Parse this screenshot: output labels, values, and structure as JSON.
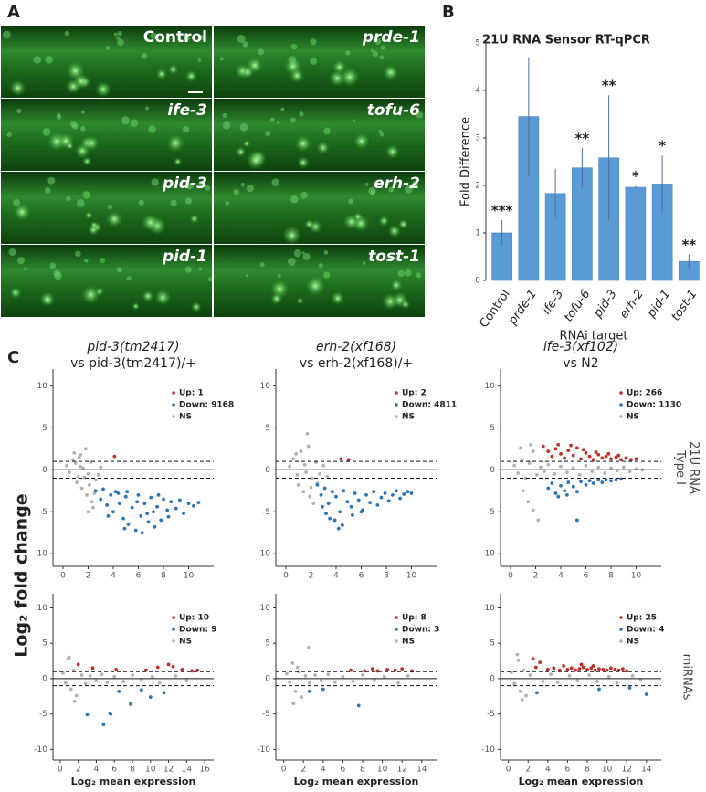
{
  "panel_labels": [
    "A",
    "B",
    "C"
  ],
  "panel_a": {
    "labels": [
      "Control",
      "prde-1",
      "ife-3",
      "tofu-6",
      "pid-3",
      "erh-2",
      "pid-1",
      "tost-1"
    ]
  },
  "panel_c": {
    "ylabel": "Log₂ fold change"
  },
  "chart_data": [
    {
      "type": "bar",
      "title": "21U RNA Sensor RT-qPCR",
      "xlabel": "RNAi target",
      "ylabel": "Fold Difference",
      "categories": [
        "Control",
        "prde-1",
        "ife-3",
        "tofu-6",
        "pid-3",
        "erh-2",
        "pid-1",
        "tost-1"
      ],
      "values": [
        1.0,
        3.45,
        1.83,
        2.37,
        2.58,
        1.96,
        2.03,
        0.4
      ],
      "errors": [
        0.27,
        1.25,
        0.52,
        0.42,
        1.32,
        0.03,
        0.6,
        0.15
      ],
      "annotations": [
        "***",
        null,
        null,
        "**",
        "**",
        "*",
        "*",
        "**"
      ],
      "color": "#5b9bd5",
      "ylim": [
        0,
        5
      ],
      "yticks": [
        0,
        1,
        2,
        3,
        4,
        5
      ]
    },
    {
      "type": "scatter",
      "title": [
        "pid-3(tm2417)",
        "vs pid-3(tm2417)/+"
      ],
      "xlim": [
        -0.8,
        12
      ],
      "xticks": [
        0,
        2,
        4,
        6,
        8,
        10
      ],
      "ylim": [
        -11.5,
        12
      ],
      "yticks": [
        -10,
        -5,
        0,
        5,
        10
      ],
      "hlines": [
        {
          "y": 0,
          "style": "solid"
        },
        {
          "y": 1,
          "style": "dashed"
        },
        {
          "y": -1,
          "style": "dashed"
        }
      ],
      "series": [
        {
          "name": "Up: 1",
          "color": "#c0302a",
          "x": [
            4.1
          ],
          "values": [
            1.6
          ]
        },
        {
          "name": "Down: 9168",
          "color": "#2e75b6",
          "x": [
            2.6,
            3.0,
            3.2,
            3.5,
            3.8,
            4.0,
            4.2,
            4.5,
            4.8,
            5.0,
            5.2,
            5.5,
            5.8,
            6.0,
            6.2,
            6.5,
            6.8,
            7.0,
            7.2,
            7.5,
            7.8,
            8.0,
            8.3,
            8.6,
            9.0,
            9.3,
            9.6,
            10.0,
            10.4,
            10.8,
            4.4,
            5.1,
            5.9,
            6.7,
            7.6,
            8.4,
            3.6,
            4.9,
            6.3,
            7.3
          ],
          "values": [
            -2.5,
            -3.5,
            -2.3,
            -4.2,
            -3.0,
            -5.0,
            -2.6,
            -4.0,
            -5.8,
            -3.2,
            -6.5,
            -4.5,
            -7.2,
            -3.0,
            -5.5,
            -4.0,
            -6.2,
            -3.3,
            -5.0,
            -4.4,
            -6.0,
            -3.5,
            -4.8,
            -3.8,
            -4.6,
            -3.6,
            -5.2,
            -4.0,
            -4.3,
            -3.9,
            -2.8,
            -2.6,
            -3.8,
            -5.2,
            -3.0,
            -5.6,
            -5.5,
            -7.0,
            -7.5,
            -6.8
          ]
        },
        {
          "name": "NS",
          "color": "#b3b3b3",
          "x": [
            0.3,
            0.5,
            0.8,
            1.0,
            1.2,
            1.4,
            1.6,
            1.8,
            2.0,
            2.2,
            1.1,
            1.5,
            1.9,
            2.3,
            2.6,
            0.9,
            1.7,
            2.1,
            2.4,
            1.3,
            2.8,
            3.0,
            2.5,
            2.0,
            1.4
          ],
          "values": [
            0.5,
            -0.3,
            1.2,
            0.8,
            -0.8,
            1.8,
            0.2,
            2.5,
            -0.5,
            0.9,
            -1.5,
            -2.2,
            -3.0,
            -3.8,
            -1.2,
            2.0,
            -0.9,
            -1.8,
            -4.5,
            1.5,
            -0.6,
            0.3,
            -2.8,
            -5.0,
            0.4
          ]
        }
      ]
    },
    {
      "type": "scatter",
      "title": [
        "erh-2(xf168)",
        "vs erh-2(xf168)/+"
      ],
      "xlim": [
        -0.8,
        12
      ],
      "xticks": [
        0,
        2,
        4,
        6,
        8,
        10
      ],
      "ylim": [
        -11.5,
        12
      ],
      "yticks": [
        -10,
        -5,
        0,
        5,
        10
      ],
      "hlines": [
        {
          "y": 0,
          "style": "solid"
        },
        {
          "y": 1,
          "style": "dashed"
        },
        {
          "y": -1,
          "style": "dashed"
        }
      ],
      "series": [
        {
          "name": "Up: 2",
          "color": "#c0302a",
          "x": [
            4.4,
            5.0
          ],
          "values": [
            1.3,
            1.2
          ]
        },
        {
          "name": "Down: 4811",
          "color": "#2e75b6",
          "x": [
            2.5,
            2.8,
            3.1,
            3.4,
            3.7,
            4.0,
            4.3,
            4.6,
            4.9,
            5.2,
            5.5,
            5.8,
            6.1,
            6.4,
            6.7,
            7.0,
            7.3,
            7.6,
            7.9,
            8.2,
            8.5,
            8.8,
            9.1,
            9.4,
            9.7,
            10.0,
            3.2,
            3.9,
            4.5,
            5.3,
            6.0,
            2.9,
            3.5,
            4.2
          ],
          "values": [
            -1.8,
            -3.0,
            -2.2,
            -4.0,
            -2.6,
            -3.2,
            -5.0,
            -2.5,
            -3.8,
            -4.4,
            -2.8,
            -3.6,
            -4.8,
            -3.0,
            -3.9,
            -2.6,
            -4.2,
            -3.3,
            -2.8,
            -3.7,
            -3.0,
            -2.5,
            -3.4,
            -2.9,
            -2.6,
            -2.8,
            -5.2,
            -6.0,
            -6.6,
            -5.4,
            -5.0,
            -4.4,
            -5.8,
            -7.0
          ]
        },
        {
          "name": "NS",
          "color": "#b3b3b3",
          "x": [
            0.3,
            0.6,
            0.9,
            1.2,
            1.5,
            1.8,
            2.1,
            2.4,
            1.0,
            1.4,
            1.9,
            2.2,
            2.7,
            3.0,
            0.8,
            1.6,
            2.0,
            2.5,
            1.7,
            3.3
          ],
          "values": [
            0.4,
            1.3,
            -0.6,
            2.2,
            0.6,
            2.8,
            -1.0,
            0.9,
            -1.8,
            -2.6,
            -3.2,
            -4.0,
            -0.5,
            0.5,
            1.9,
            -0.3,
            -2.1,
            -1.6,
            4.3,
            -0.8
          ]
        }
      ]
    },
    {
      "type": "scatter",
      "title": [
        "ife-3(xf102)",
        "vs N2"
      ],
      "xlim": [
        -0.8,
        12
      ],
      "xticks": [
        0,
        2,
        4,
        6,
        8,
        10
      ],
      "ylim": [
        -11.5,
        12
      ],
      "yticks": [
        -10,
        -5,
        0,
        5,
        10
      ],
      "row_label": [
        "21U RNA",
        "Type I"
      ],
      "hlines": [
        {
          "y": 0,
          "style": "solid"
        },
        {
          "y": 1,
          "style": "dashed"
        },
        {
          "y": -1,
          "style": "dashed"
        }
      ],
      "series": [
        {
          "name": "Up: 266",
          "color": "#c0302a",
          "x": [
            2.6,
            3.0,
            3.3,
            3.6,
            4.0,
            4.3,
            4.6,
            5.0,
            5.3,
            5.6,
            6.0,
            6.3,
            6.6,
            7.0,
            7.3,
            7.6,
            8.0,
            8.4,
            8.8,
            9.2,
            9.6,
            10.0,
            3.8,
            4.8,
            5.8,
            6.8,
            7.8,
            8.6
          ],
          "values": [
            2.8,
            2.2,
            1.6,
            2.5,
            1.9,
            1.4,
            2.3,
            1.7,
            2.6,
            1.3,
            2.0,
            1.6,
            1.2,
            1.8,
            1.4,
            1.6,
            1.3,
            1.5,
            1.2,
            1.4,
            1.2,
            1.3,
            3.0,
            2.9,
            2.4,
            2.1,
            1.9,
            1.7
          ]
        },
        {
          "name": "Down: 1130",
          "color": "#2e75b6",
          "x": [
            3.0,
            3.3,
            3.6,
            4.0,
            4.3,
            4.6,
            5.0,
            5.3,
            5.6,
            6.0,
            6.3,
            6.6,
            7.0,
            7.3,
            7.6,
            8.0,
            8.4,
            8.8,
            3.8,
            4.5,
            5.3
          ],
          "values": [
            -2.2,
            -1.6,
            -2.8,
            -1.9,
            -2.5,
            -1.5,
            -2.0,
            -2.6,
            -1.4,
            -1.8,
            -1.3,
            -1.6,
            -1.2,
            -1.5,
            -1.2,
            -1.3,
            -1.2,
            -1.1,
            -3.2,
            -3.0,
            -6.0
          ]
        },
        {
          "name": "NS",
          "color": "#b3b3b3",
          "x": [
            0.3,
            0.6,
            0.9,
            1.2,
            1.5,
            1.8,
            2.1,
            2.4,
            2.7,
            3.0,
            3.5,
            4.0,
            4.5,
            5.0,
            5.5,
            6.0,
            6.5,
            7.0,
            7.5,
            8.0,
            8.5,
            9.0,
            9.5,
            10.0,
            10.5,
            1.0,
            1.4,
            1.8,
            2.2,
            0.8,
            1.6
          ],
          "values": [
            0.5,
            -0.4,
            1.2,
            -1.0,
            0.8,
            2.2,
            -0.6,
            0.3,
            -0.2,
            0.6,
            -0.5,
            0.4,
            -0.3,
            0.2,
            -0.6,
            0.5,
            -0.2,
            0.3,
            -0.4,
            0.2,
            -0.1,
            0.3,
            -0.2,
            0.1,
            0.0,
            -2.5,
            -3.8,
            -4.8,
            -6.0,
            2.6,
            3.0
          ]
        }
      ]
    },
    {
      "type": "scatter",
      "xlabel": "Log₂ mean expression",
      "xlim": [
        -0.8,
        17
      ],
      "xticks": [
        0,
        2,
        4,
        6,
        8,
        10,
        12,
        14,
        16
      ],
      "ylim": [
        -11.5,
        12
      ],
      "yticks": [
        -10,
        -5,
        0,
        5,
        10
      ],
      "hlines": [
        {
          "y": 0,
          "style": "solid"
        },
        {
          "y": 1,
          "style": "dashed"
        },
        {
          "y": -1,
          "style": "dashed"
        }
      ],
      "series": [
        {
          "name": "Up: 10",
          "color": "#c0302a",
          "x": [
            2.0,
            3.6,
            6.2,
            9.5,
            10.8,
            12.0,
            12.5,
            13.5,
            14.6,
            15.2
          ],
          "values": [
            2.0,
            1.5,
            1.3,
            1.2,
            1.6,
            2.0,
            1.7,
            1.3,
            1.1,
            1.2
          ]
        },
        {
          "name": "Down: 9",
          "color": "#2e75b6",
          "x": [
            3.0,
            4.8,
            5.5,
            5.6,
            7.8,
            10.0,
            11.5,
            6.5,
            9.0
          ],
          "values": [
            -5.1,
            -6.5,
            -4.9,
            -5.0,
            -3.6,
            -2.6,
            -2.0,
            -1.8,
            -1.6
          ]
        },
        {
          "name": "NS",
          "color": "#b3b3b3",
          "x": [
            0.3,
            0.6,
            0.9,
            1.2,
            1.5,
            1.8,
            2.4,
            2.8,
            3.3,
            4.0,
            4.6,
            5.2,
            6.0,
            7.0,
            8.0,
            9.0,
            10.2,
            11.0,
            12.8,
            14.0,
            1.0,
            1.6
          ],
          "values": [
            0.8,
            -0.6,
            2.8,
            -1.5,
            1.2,
            -2.4,
            0.5,
            -0.7,
            0.4,
            -0.3,
            0.6,
            -0.5,
            0.3,
            -0.4,
            0.5,
            -0.2,
            0.3,
            -0.6,
            0.4,
            -0.3,
            3.0,
            -3.2
          ]
        }
      ]
    },
    {
      "type": "scatter",
      "xlabel": "Log₂ mean expression",
      "xlim": [
        -0.8,
        15.5
      ],
      "xticks": [
        0,
        2,
        4,
        6,
        8,
        10,
        12,
        14
      ],
      "ylim": [
        -11.5,
        12
      ],
      "yticks": [
        -10,
        -5,
        0,
        5,
        10
      ],
      "hlines": [
        {
          "y": 0,
          "style": "solid"
        },
        {
          "y": 1,
          "style": "dashed"
        },
        {
          "y": -1,
          "style": "dashed"
        }
      ],
      "series": [
        {
          "name": "Up: 8",
          "color": "#c0302a",
          "x": [
            6.8,
            8.2,
            9.0,
            9.5,
            10.5,
            11.3,
            12.0,
            13.0
          ],
          "values": [
            1.2,
            1.1,
            1.4,
            1.1,
            1.3,
            1.2,
            1.4,
            1.1
          ]
        },
        {
          "name": "Down: 3",
          "color": "#2e75b6",
          "x": [
            2.6,
            4.0,
            7.6
          ],
          "values": [
            -1.8,
            -1.5,
            -3.8
          ]
        },
        {
          "name": "NS",
          "color": "#b3b3b3",
          "x": [
            0.3,
            0.6,
            0.9,
            1.2,
            1.5,
            1.8,
            2.2,
            2.6,
            3.2,
            3.8,
            4.5,
            5.2,
            6.0,
            7.0,
            8.0,
            9.2,
            10.2,
            11.6,
            12.6,
            1.0,
            1.4,
            2.5
          ],
          "values": [
            0.7,
            -0.5,
            2.2,
            -1.8,
            1.0,
            -2.6,
            0.4,
            -0.6,
            0.5,
            -0.3,
            0.6,
            -0.5,
            0.3,
            -0.4,
            0.5,
            -0.2,
            0.3,
            -0.6,
            0.4,
            -3.5,
            1.6,
            4.4
          ]
        }
      ]
    },
    {
      "type": "scatter",
      "xlabel": "Log₂ mean expression",
      "xlim": [
        -0.8,
        15.5
      ],
      "xticks": [
        0,
        2,
        4,
        6,
        8,
        10,
        12,
        14
      ],
      "ylim": [
        -11.5,
        12
      ],
      "yticks": [
        -10,
        -5,
        0,
        5,
        10
      ],
      "row_label": [
        "miRNAs"
      ],
      "hlines": [
        {
          "y": 0,
          "style": "solid"
        },
        {
          "y": 1,
          "style": "dashed"
        },
        {
          "y": -1,
          "style": "dashed"
        }
      ],
      "series": [
        {
          "name": "Up: 25",
          "color": "#c0302a",
          "x": [
            2.5,
            2.8,
            3.2,
            4.0,
            4.6,
            5.2,
            5.6,
            6.0,
            6.4,
            6.8,
            7.2,
            7.6,
            8.0,
            8.4,
            8.8,
            9.2,
            9.6,
            10.0,
            10.4,
            10.8,
            11.2,
            11.6,
            12.0,
            7.4,
            8.6
          ],
          "values": [
            2.8,
            1.6,
            2.3,
            1.3,
            1.5,
            1.2,
            1.8,
            1.3,
            1.5,
            1.2,
            1.4,
            1.6,
            1.3,
            1.5,
            1.2,
            1.4,
            1.3,
            1.2,
            1.5,
            1.3,
            1.2,
            1.4,
            1.1,
            2.0,
            1.8
          ]
        },
        {
          "name": "Down: 4",
          "color": "#2e75b6",
          "x": [
            2.9,
            9.2,
            12.3,
            14.0
          ],
          "values": [
            -2.0,
            -1.5,
            -1.3,
            -2.2
          ]
        },
        {
          "name": "NS",
          "color": "#b3b3b3",
          "x": [
            0.3,
            0.6,
            0.9,
            1.2,
            1.5,
            1.8,
            2.2,
            3.5,
            4.3,
            5.0,
            6.2,
            7.0,
            8.2,
            9.0,
            10.2,
            11.0,
            12.6,
            13.4,
            1.0,
            1.4
          ],
          "values": [
            0.9,
            -0.7,
            3.4,
            -1.8,
            1.2,
            -2.4,
            0.5,
            -0.4,
            0.6,
            -0.5,
            0.4,
            -0.3,
            0.5,
            -0.4,
            0.3,
            -0.6,
            0.4,
            -0.2,
            2.6,
            -3.0
          ]
        }
      ]
    }
  ]
}
